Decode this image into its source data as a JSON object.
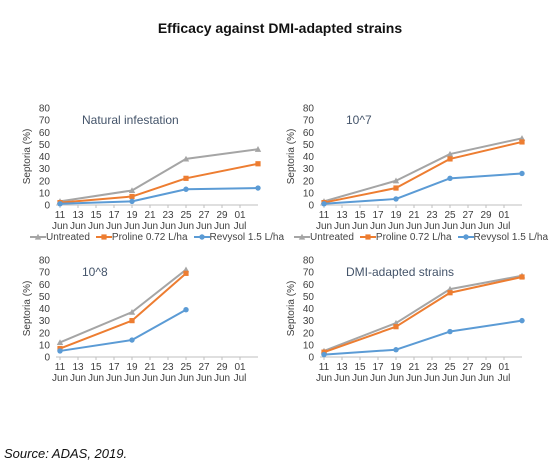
{
  "title": "Efficacy against DMI-adapted strains",
  "source": "Source: ADAS, 2019.",
  "colors": {
    "untreated": "#a5a5a5",
    "proline": "#ed7d31",
    "revysol": "#5b9bd5",
    "axis": "#bfbfbf",
    "text": "#404040",
    "annotation": "#44546a"
  },
  "legend": [
    {
      "name": "Untreated",
      "marker": "triangle",
      "color": "#a5a5a5"
    },
    {
      "name": "Proline 0.72 L/ha",
      "marker": "square",
      "color": "#ed7d31"
    },
    {
      "name": "Revysol 1.5 L/ha",
      "marker": "circle",
      "color": "#5b9bd5"
    }
  ],
  "chart_data": [
    {
      "type": "line",
      "annotation": "Natural infestation",
      "ylabel": "Septoria (%)",
      "ylim": [
        0,
        80
      ],
      "yticks": [
        0,
        10,
        20,
        30,
        40,
        50,
        60,
        70,
        80
      ],
      "xlim": [
        "2019-06-11",
        "2019-07-03"
      ],
      "xticks": [
        [
          "11",
          "Jun"
        ],
        [
          "13",
          "Jun"
        ],
        [
          "15",
          "Jun"
        ],
        [
          "17",
          "Jun"
        ],
        [
          "19",
          "Jun"
        ],
        [
          "21",
          "Jun"
        ],
        [
          "23",
          "Jun"
        ],
        [
          "25",
          "Jun"
        ],
        [
          "27",
          "Jun"
        ],
        [
          "29",
          "Jun"
        ],
        [
          "01",
          "Jul"
        ]
      ],
      "x": [
        "2019-06-11",
        "2019-06-19",
        "2019-06-25",
        "2019-07-03"
      ],
      "series": [
        {
          "name": "Untreated",
          "values": [
            3,
            12,
            38,
            46
          ]
        },
        {
          "name": "Proline 0.72 L/ha",
          "values": [
            2,
            7,
            22,
            34
          ]
        },
        {
          "name": "Revysol 1.5 L/ha",
          "values": [
            1,
            3,
            13,
            14
          ]
        }
      ]
    },
    {
      "type": "line",
      "annotation": "10^7",
      "ylabel": "Septoria (%)",
      "ylim": [
        0,
        80
      ],
      "yticks": [
        0,
        10,
        20,
        30,
        40,
        50,
        60,
        70,
        80
      ],
      "xlim": [
        "2019-06-11",
        "2019-07-03"
      ],
      "xticks": [
        [
          "11",
          "Jun"
        ],
        [
          "13",
          "Jun"
        ],
        [
          "15",
          "Jun"
        ],
        [
          "17",
          "Jun"
        ],
        [
          "19",
          "Jun"
        ],
        [
          "21",
          "Jun"
        ],
        [
          "23",
          "Jun"
        ],
        [
          "25",
          "Jun"
        ],
        [
          "27",
          "Jun"
        ],
        [
          "29",
          "Jun"
        ],
        [
          "01",
          "Jul"
        ]
      ],
      "x": [
        "2019-06-11",
        "2019-06-19",
        "2019-06-25",
        "2019-07-03"
      ],
      "series": [
        {
          "name": "Untreated",
          "values": [
            3,
            20,
            42,
            55
          ]
        },
        {
          "name": "Proline 0.72 L/ha",
          "values": [
            2,
            14,
            38,
            52
          ]
        },
        {
          "name": "Revysol 1.5 L/ha",
          "values": [
            1,
            5,
            22,
            26
          ]
        }
      ]
    },
    {
      "type": "line",
      "annotation": "10^8",
      "ylabel": "Septoria (%)",
      "ylim": [
        0,
        80
      ],
      "yticks": [
        0,
        10,
        20,
        30,
        40,
        50,
        60,
        70,
        80
      ],
      "xlim": [
        "2019-06-11",
        "2019-07-03"
      ],
      "xticks": [
        [
          "11",
          "Jun"
        ],
        [
          "13",
          "Jun"
        ],
        [
          "15",
          "Jun"
        ],
        [
          "17",
          "Jun"
        ],
        [
          "19",
          "Jun"
        ],
        [
          "21",
          "Jun"
        ],
        [
          "23",
          "Jun"
        ],
        [
          "25",
          "Jun"
        ],
        [
          "27",
          "Jun"
        ],
        [
          "29",
          "Jun"
        ],
        [
          "01",
          "Jul"
        ]
      ],
      "x": [
        "2019-06-11",
        "2019-06-19",
        "2019-06-25"
      ],
      "series": [
        {
          "name": "Untreated",
          "values": [
            12,
            37,
            72
          ]
        },
        {
          "name": "Proline 0.72 L/ha",
          "values": [
            7,
            30,
            69
          ]
        },
        {
          "name": "Revysol 1.5 L/ha",
          "values": [
            5,
            14,
            39
          ]
        }
      ]
    },
    {
      "type": "line",
      "annotation": "DMI-adapted strains",
      "ylabel": "Septoria (%)",
      "ylim": [
        0,
        80
      ],
      "yticks": [
        0,
        10,
        20,
        30,
        40,
        50,
        60,
        70,
        80
      ],
      "xlim": [
        "2019-06-11",
        "2019-07-03"
      ],
      "xticks": [
        [
          "11",
          "Jun"
        ],
        [
          "13",
          "Jun"
        ],
        [
          "15",
          "Jun"
        ],
        [
          "17",
          "Jun"
        ],
        [
          "19",
          "Jun"
        ],
        [
          "21",
          "Jun"
        ],
        [
          "23",
          "Jun"
        ],
        [
          "25",
          "Jun"
        ],
        [
          "27",
          "Jun"
        ],
        [
          "29",
          "Jun"
        ],
        [
          "01",
          "Jul"
        ]
      ],
      "x": [
        "2019-06-11",
        "2019-06-19",
        "2019-06-25",
        "2019-07-03"
      ],
      "series": [
        {
          "name": "Untreated",
          "values": [
            5,
            28,
            56,
            67
          ]
        },
        {
          "name": "Proline 0.72 L/ha",
          "values": [
            4,
            25,
            53,
            66
          ]
        },
        {
          "name": "Revysol 1.5 L/ha",
          "values": [
            2,
            6,
            21,
            30
          ]
        }
      ]
    }
  ]
}
